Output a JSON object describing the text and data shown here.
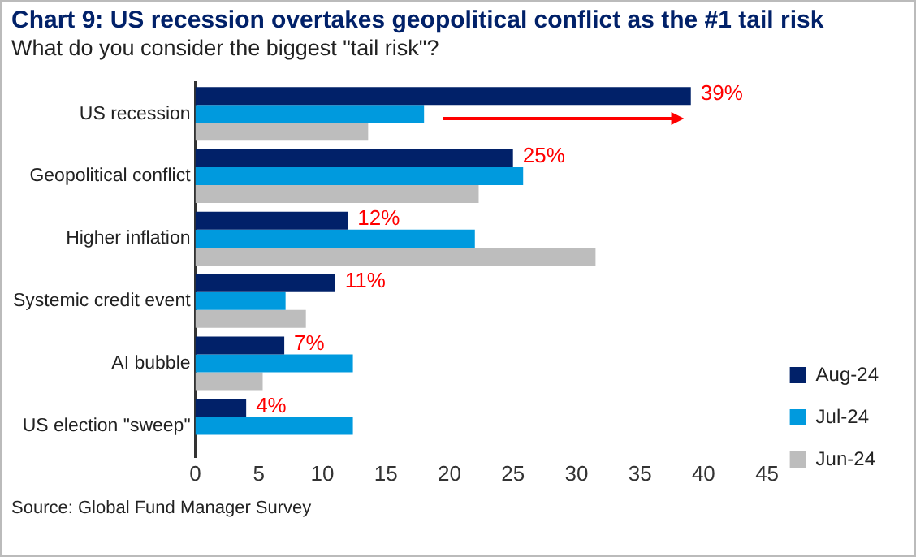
{
  "chart_data": {
    "type": "bar",
    "orientation": "horizontal",
    "title": "Chart 9: US recession overtakes geopolitical conflict as the #1 tail risk",
    "subtitle": "What do you consider the biggest \"tail risk\"?",
    "categories": [
      "US recession",
      "Geopolitical conflict",
      "Higher inflation",
      "Systemic credit event",
      "AI bubble",
      "US election \"sweep\""
    ],
    "series": [
      {
        "name": "Aug-24",
        "color": "#012169",
        "values": [
          39,
          25,
          12,
          11,
          7,
          4
        ],
        "value_labels": [
          "39%",
          "25%",
          "12%",
          "11%",
          "7%",
          "4%"
        ]
      },
      {
        "name": "Jul-24",
        "color": "#009ade",
        "values": [
          18,
          25.8,
          22,
          7.1,
          12.4,
          12.4
        ]
      },
      {
        "name": "Jun-24",
        "color": "#bdbdbd",
        "values": [
          13.6,
          22.3,
          31.5,
          8.7,
          5.3,
          null
        ]
      }
    ],
    "xlim": [
      0,
      45
    ],
    "xticks": [
      0,
      5,
      10,
      15,
      20,
      25,
      30,
      35,
      40,
      45
    ],
    "grid": false,
    "legend": "bottom right",
    "annotations": [
      "Source: Global Fund Manager Survey"
    ]
  }
}
